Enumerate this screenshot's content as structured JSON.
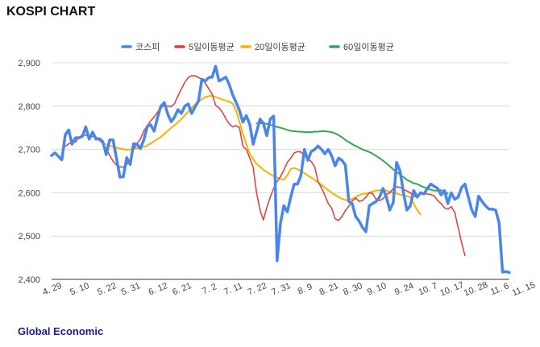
{
  "header": {
    "title": "KOSPI CHART"
  },
  "footer": {
    "source": "Global Economic"
  },
  "chart_data": {
    "type": "line",
    "title": "KOSPI CHART",
    "xlabel": "",
    "ylabel": "",
    "ylim": [
      2400,
      2900
    ],
    "y_ticks": [
      2400,
      2500,
      2600,
      2700,
      2800,
      2900
    ],
    "y_tick_labels": [
      "2,400",
      "2,500",
      "2,600",
      "2,700",
      "2,800",
      "2,900"
    ],
    "x_tick_labels": [
      {
        "label": "4. 29",
        "index": 0
      },
      {
        "label": "5. 10",
        "index": 8
      },
      {
        "label": "5. 22",
        "index": 16
      },
      {
        "label": "5. 31",
        "index": 23
      },
      {
        "label": "6. 12",
        "index": 31
      },
      {
        "label": "6. 21",
        "index": 38
      },
      {
        "label": "7. 2",
        "index": 46
      },
      {
        "label": "7. 11",
        "index": 53
      },
      {
        "label": "7. 22",
        "index": 60
      },
      {
        "label": "7. 31",
        "index": 67
      },
      {
        "label": "8. 9",
        "index": 74
      },
      {
        "label": "8. 21",
        "index": 81
      },
      {
        "label": "8. 30",
        "index": 88
      },
      {
        "label": "9. 10",
        "index": 95
      },
      {
        "label": "9. 24",
        "index": 103
      },
      {
        "label": "10. 7",
        "index": 110
      },
      {
        "label": "10. 17",
        "index": 117
      },
      {
        "label": "10. 28",
        "index": 124
      },
      {
        "label": "11. 6",
        "index": 131
      },
      {
        "label": "11. 15",
        "index": 138
      }
    ],
    "grid": true,
    "legend_position": "top-center",
    "series": [
      {
        "name": "코스피",
        "color": "#4a86e8",
        "start_index": 0,
        "values": [
          2686,
          2692,
          2684,
          2676,
          2734,
          2745,
          2712,
          2727,
          2727,
          2730,
          2752,
          2724,
          2740,
          2724,
          2725,
          2718,
          2688,
          2722,
          2722,
          2680,
          2636,
          2637,
          2681,
          2665,
          2713,
          2712,
          2702,
          2722,
          2753,
          2757,
          2742,
          2773,
          2800,
          2808,
          2782,
          2764,
          2775,
          2792,
          2783,
          2800,
          2805,
          2783,
          2798,
          2812,
          2862,
          2858,
          2866,
          2867,
          2892,
          2858,
          2862,
          2867,
          2850,
          2826,
          2809,
          2790,
          2763,
          2778,
          2758,
          2712,
          2740,
          2770,
          2760,
          2732,
          2770,
          2777,
          2443,
          2530,
          2570,
          2556,
          2590,
          2620,
          2620,
          2640,
          2700,
          2675,
          2695,
          2700,
          2708,
          2700,
          2690,
          2700,
          2685,
          2662,
          2680,
          2675,
          2664,
          2580,
          2575,
          2545,
          2535,
          2520,
          2510,
          2570,
          2575,
          2580,
          2590,
          2610,
          2590,
          2560,
          2577,
          2670,
          2650,
          2600,
          2560,
          2570,
          2605,
          2590,
          2600,
          2597,
          2610,
          2620,
          2615,
          2610,
          2595,
          2605,
          2575,
          2600,
          2585,
          2590,
          2612,
          2620,
          2590,
          2560,
          2545,
          2592,
          2580,
          2570,
          2562,
          2562,
          2560,
          2530,
          2417,
          2418,
          2416
        ]
      },
      {
        "name": "5일이동평균",
        "color": "#e53935",
        "start_index": 4,
        "values": [
          2707,
          2713,
          2716,
          2717,
          2728,
          2733,
          2733,
          2729,
          2730,
          2729,
          2721,
          2714,
          2702,
          2686,
          2673,
          2664,
          2660,
          2659,
          2666,
          2671,
          2700,
          2714,
          2724,
          2743,
          2755,
          2766,
          2775,
          2786,
          2796,
          2802,
          2800,
          2799,
          2806,
          2824,
          2840,
          2855,
          2866,
          2870,
          2870,
          2866,
          2862,
          2853,
          2840,
          2828,
          2802,
          2796,
          2786,
          2771,
          2759,
          2752,
          2755,
          2750,
          2707,
          2700,
          2680,
          2659,
          2600,
          2560,
          2537,
          2566,
          2590,
          2610,
          2626,
          2637,
          2653,
          2670,
          2680,
          2692,
          2695,
          2694,
          2686,
          2680,
          2672,
          2660,
          2626,
          2611,
          2594,
          2575,
          2564,
          2540,
          2536,
          2545,
          2559,
          2569,
          2581,
          2588,
          2580,
          2582,
          2590,
          2600,
          2598,
          2584,
          2582,
          2586,
          2596,
          2600,
          2610,
          2614,
          2612,
          2608,
          2604,
          2600,
          2592,
          2590,
          2600,
          2600,
          2597,
          2596,
          2593,
          2582,
          2575,
          2565,
          2562,
          2568,
          2555,
          2520,
          2485,
          2455
        ]
      },
      {
        "name": "20일이동평균",
        "color": "#f4b400",
        "start_index": 16,
        "values": [
          2712,
          2709,
          2706,
          2704,
          2702,
          2701,
          2699,
          2700,
          2701,
          2703,
          2704,
          2706,
          2709,
          2714,
          2719,
          2724,
          2729,
          2736,
          2743,
          2750,
          2756,
          2763,
          2770,
          2779,
          2787,
          2796,
          2804,
          2810,
          2816,
          2821,
          2823,
          2824,
          2821,
          2818,
          2815,
          2813,
          2810,
          2806,
          2790,
          2764,
          2736,
          2712,
          2690,
          2678,
          2667,
          2660,
          2653,
          2648,
          2643,
          2638,
          2635,
          2632,
          2630,
          2640,
          2655,
          2657,
          2654,
          2650,
          2645,
          2640,
          2635,
          2630,
          2624,
          2618,
          2612,
          2606,
          2600,
          2595,
          2590,
          2586,
          2583,
          2583,
          2586,
          2590,
          2594,
          2597,
          2598,
          2600,
          2603,
          2605,
          2606,
          2607,
          2605,
          2602,
          2600,
          2598,
          2596,
          2594,
          2592,
          2590,
          2575,
          2560,
          2550
        ]
      },
      {
        "name": "60일이동평균",
        "color": "#34a853",
        "start_index": 60,
        "values": [
          2760,
          2760,
          2761,
          2759,
          2757,
          2754,
          2752,
          2750,
          2748,
          2745,
          2743,
          2742,
          2741,
          2741,
          2740,
          2740,
          2740,
          2741,
          2741,
          2742,
          2742,
          2741,
          2740,
          2737,
          2733,
          2728,
          2722,
          2717,
          2712,
          2708,
          2704,
          2700,
          2697,
          2694,
          2690,
          2685,
          2680,
          2674,
          2668,
          2661,
          2654,
          2648,
          2642,
          2636,
          2630,
          2626,
          2622,
          2620,
          2616,
          2613,
          2610,
          2607,
          2605,
          2605,
          2606,
          2603,
          2598
        ]
      }
    ]
  }
}
